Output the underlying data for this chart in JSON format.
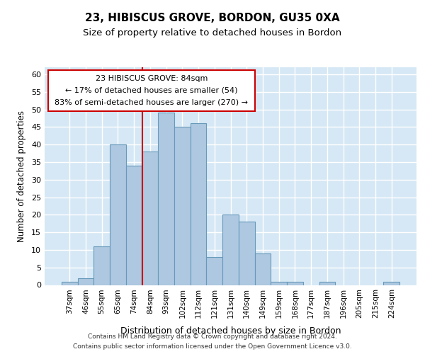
{
  "title_line1": "23, HIBISCUS GROVE, BORDON, GU35 0XA",
  "title_line2": "Size of property relative to detached houses in Bordon",
  "xlabel": "Distribution of detached houses by size in Bordon",
  "ylabel": "Number of detached properties",
  "categories": [
    "37sqm",
    "46sqm",
    "55sqm",
    "65sqm",
    "74sqm",
    "84sqm",
    "93sqm",
    "102sqm",
    "112sqm",
    "121sqm",
    "131sqm",
    "140sqm",
    "149sqm",
    "159sqm",
    "168sqm",
    "177sqm",
    "187sqm",
    "196sqm",
    "205sqm",
    "215sqm",
    "224sqm"
  ],
  "bar_values": [
    1,
    2,
    11,
    40,
    34,
    38,
    49,
    45,
    46,
    8,
    20,
    18,
    9,
    1,
    1,
    0,
    1,
    0,
    0,
    0,
    1
  ],
  "bar_color": "#adc8e0",
  "bar_edge_color": "#6699bb",
  "ylim": [
    0,
    62
  ],
  "yticks": [
    0,
    5,
    10,
    15,
    20,
    25,
    30,
    35,
    40,
    45,
    50,
    55,
    60
  ],
  "annotation_title": "23 HIBISCUS GROVE: 84sqm",
  "annotation_line1": "← 17% of detached houses are smaller (54)",
  "annotation_line2": "83% of semi-detached houses are larger (270) →",
  "annotation_box_color": "#ffffff",
  "annotation_box_edge_color": "#cc0000",
  "red_line_color": "#cc0000",
  "footer_line1": "Contains HM Land Registry data © Crown copyright and database right 2024.",
  "footer_line2": "Contains public sector information licensed under the Open Government Licence v3.0.",
  "background_color": "#d6e8f5",
  "grid_color": "#ffffff",
  "fig_background": "#ffffff"
}
